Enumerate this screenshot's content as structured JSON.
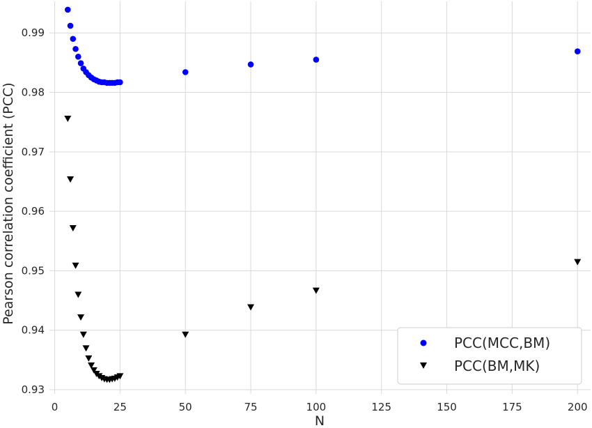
{
  "chart_data": {
    "type": "scatter",
    "xlabel": "N",
    "ylabel": "Pearson correlation coefficient (PCC)",
    "xlim": [
      -2,
      205
    ],
    "ylim": [
      0.9293,
      0.9953
    ],
    "xticks": [
      "0",
      "25",
      "50",
      "75",
      "100",
      "125",
      "150",
      "175",
      "200"
    ],
    "yticks": [
      "0.93",
      "0.94",
      "0.95",
      "0.96",
      "0.97",
      "0.98",
      "0.99"
    ],
    "grid": true,
    "legend_position": "lower-right",
    "series": [
      {
        "name": "PCC(MCC,BM)",
        "marker": "circle",
        "color": "#0000ff",
        "x": [
          5,
          6,
          7,
          8,
          9,
          10,
          11,
          12,
          13,
          14,
          15,
          16,
          17,
          18,
          19,
          20,
          21,
          22,
          23,
          24,
          25,
          50,
          75,
          100,
          200
        ],
        "y": [
          0.9939,
          0.9912,
          0.989,
          0.9873,
          0.986,
          0.9849,
          0.984,
          0.9834,
          0.9829,
          0.9825,
          0.9822,
          0.982,
          0.9818,
          0.9817,
          0.9817,
          0.9816,
          0.9816,
          0.9816,
          0.9816,
          0.9817,
          0.9817,
          0.9834,
          0.9847,
          0.9855,
          0.9869
        ]
      },
      {
        "name": "PCC(BM,MK)",
        "marker": "triangle-down",
        "color": "#000000",
        "x": [
          5,
          6,
          7,
          8,
          9,
          10,
          11,
          12,
          13,
          14,
          15,
          16,
          17,
          18,
          19,
          20,
          21,
          22,
          23,
          24,
          25,
          50,
          75,
          100,
          200
        ],
        "y": [
          0.9756,
          0.9654,
          0.9572,
          0.9509,
          0.946,
          0.9422,
          0.9393,
          0.937,
          0.9353,
          0.9341,
          0.9333,
          0.9327,
          0.9323,
          0.932,
          0.9318,
          0.9317,
          0.9317,
          0.9318,
          0.9319,
          0.9321,
          0.9323,
          0.9393,
          0.9439,
          0.9467,
          0.9515
        ]
      }
    ]
  }
}
